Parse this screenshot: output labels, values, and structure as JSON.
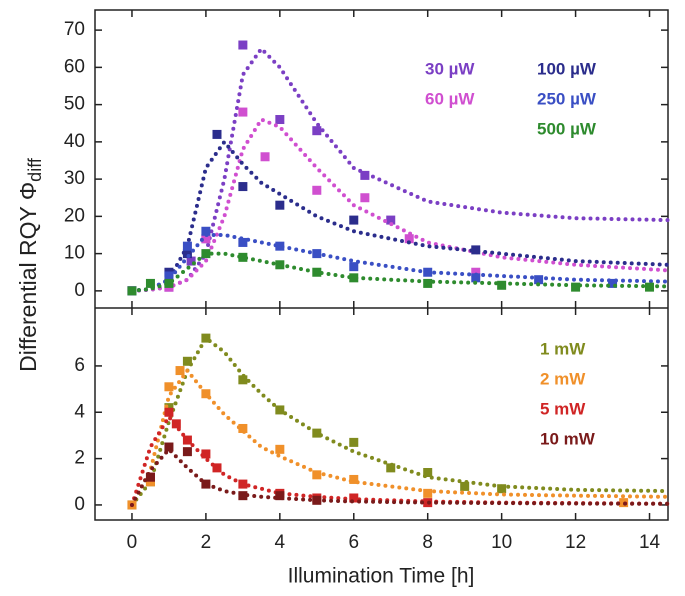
{
  "chart_data": {
    "type": "scatter",
    "xlabel": "Illumination Time [h]",
    "ylabel": "Differential RQY  Φ",
    "ylabel_sub": "diff",
    "xlim": [
      -1,
      14.5
    ],
    "xticks": [
      0,
      2,
      4,
      6,
      8,
      10,
      12,
      14
    ],
    "panels": [
      {
        "ylim": [
          -4.6,
          75.4
        ],
        "yticks": [
          0,
          10,
          20,
          30,
          40,
          50,
          60,
          70
        ],
        "legend_split": 2,
        "fit_x": [
          0,
          0.5,
          1,
          1.5,
          2,
          2.5,
          3,
          3.5,
          4,
          5,
          6,
          8,
          10,
          12,
          14.5
        ],
        "series": [
          {
            "name": "30 µW",
            "color": "#7b3fc4",
            "x": [
              0,
              1,
              1.6,
              2,
              3,
              4,
              5,
              6.3,
              7
            ],
            "values": [
              0,
              1,
              8,
              14,
              66,
              46,
              43,
              31,
              19
            ],
            "fit": [
              0,
              0.3,
              1,
              3,
              10,
              30,
              58,
              65,
              60,
              45,
              33,
              24,
              21,
              19.5,
              19
            ]
          },
          {
            "name": "60 µW",
            "color": "#d04fd0",
            "x": [
              0,
              1,
              2,
              3,
              3.6,
              5,
              6.3,
              7.5,
              9.3
            ],
            "values": [
              0,
              1,
              14,
              48,
              36,
              27,
              25,
              14,
              5
            ],
            "fit": [
              0,
              0.3,
              1,
              3,
              8,
              20,
              38,
              46,
              44,
              33,
              23,
              13,
              9,
              7,
              5.5
            ]
          },
          {
            "name": "100 µW",
            "color": "#2b2d8c",
            "x": [
              0,
              1,
              1.5,
              2.3,
              3,
              4,
              6,
              9.3
            ],
            "values": [
              0,
              5,
              10,
              42,
              28,
              23,
              19,
              11
            ],
            "fit": [
              0,
              0.5,
              3,
              12,
              33,
              40,
              34,
              29,
              26,
              20,
              16,
              12,
              10,
              8,
              7
            ]
          },
          {
            "name": "250 µW",
            "color": "#3a4fc4",
            "x": [
              0,
              1,
              1.5,
              2,
              3,
              4,
              5,
              6,
              8,
              9.3,
              11,
              13
            ],
            "values": [
              0,
              4,
              12,
              16,
              13,
              12,
              10,
              6.5,
              5,
              3.5,
              3,
              2
            ],
            "fit": [
              0,
              0.5,
              3,
              9,
              15,
              15,
              14,
              13,
              12,
              10,
              8,
              5,
              4,
              3,
              2.5
            ]
          },
          {
            "name": "500 µW",
            "color": "#2e8b2e",
            "x": [
              0,
              0.5,
              1,
              2,
              3,
              4,
              5,
              6,
              8,
              10,
              12,
              14
            ],
            "values": [
              0,
              2,
              2,
              10,
              9,
              7,
              5,
              3.5,
              2,
              1.5,
              1,
              1
            ],
            "fit": [
              0,
              0.5,
              2,
              6,
              10,
              10,
              9,
              8,
              7,
              5,
              3.5,
              2.5,
              2,
              1.5,
              1.2
            ]
          }
        ]
      },
      {
        "ylim": [
          -0.65,
          8.5
        ],
        "yticks": [
          0,
          2,
          4,
          6
        ],
        "legend_split": 0,
        "fit_x": [
          0,
          0.5,
          1,
          1.5,
          2,
          2.5,
          3,
          3.5,
          4,
          5,
          6,
          8,
          10,
          12,
          14.5
        ],
        "series": [
          {
            "name": "1 mW",
            "color": "#808b1e",
            "x": [
              0,
              0.5,
              1,
              1.5,
              2,
              3,
              4,
              5,
              6,
              7,
              8,
              9,
              10
            ],
            "values": [
              0,
              1,
              4.2,
              6.2,
              7.2,
              5.4,
              4.1,
              3.1,
              2.7,
              1.6,
              1.4,
              0.8,
              0.7
            ],
            "fit": [
              0,
              1,
              3.6,
              5.8,
              7.2,
              6.6,
              5.6,
              4.8,
              4.1,
              3.1,
              2.3,
              1.2,
              0.8,
              0.65,
              0.6
            ]
          },
          {
            "name": "2 mW",
            "color": "#f0902a",
            "x": [
              0,
              0.5,
              1,
              1.3,
              2,
              3,
              4,
              5,
              6,
              8,
              13.3
            ],
            "values": [
              0,
              1,
              5.1,
              5.8,
              4.8,
              3.3,
              2.4,
              1.3,
              1.1,
              0.5,
              0.1
            ],
            "fit": [
              0,
              1.5,
              4.7,
              5.8,
              4.8,
              3.9,
              3.2,
              2.5,
              2.1,
              1.4,
              1,
              0.6,
              0.45,
              0.4,
              0.35
            ]
          },
          {
            "name": "5 mW",
            "color": "#d02525",
            "x": [
              0.5,
              1,
              1.2,
              1.5,
              2,
              2.3,
              3,
              4,
              5,
              6,
              8
            ],
            "values": [
              1.2,
              4,
              3.5,
              2.8,
              2.2,
              1.6,
              0.9,
              0.5,
              0.3,
              0.3,
              0.1
            ],
            "fit": [
              0,
              2.5,
              3.8,
              2.8,
              2,
              1.3,
              0.9,
              0.7,
              0.5,
              0.35,
              0.25,
              0.15,
              0.1,
              0.08,
              0.05
            ]
          },
          {
            "name": "10 mW",
            "color": "#7a1a1a",
            "x": [
              0.5,
              1,
              1.5,
              2,
              3,
              4,
              5
            ],
            "values": [
              1.2,
              2.5,
              2.3,
              0.9,
              0.4,
              0.4,
              0.2
            ],
            "fit": [
              0,
              1.5,
              2.4,
              1.6,
              0.9,
              0.6,
              0.45,
              0.35,
              0.3,
              0.2,
              0.15,
              0.1,
              0.08,
              0.06,
              0.05
            ]
          }
        ]
      }
    ]
  }
}
